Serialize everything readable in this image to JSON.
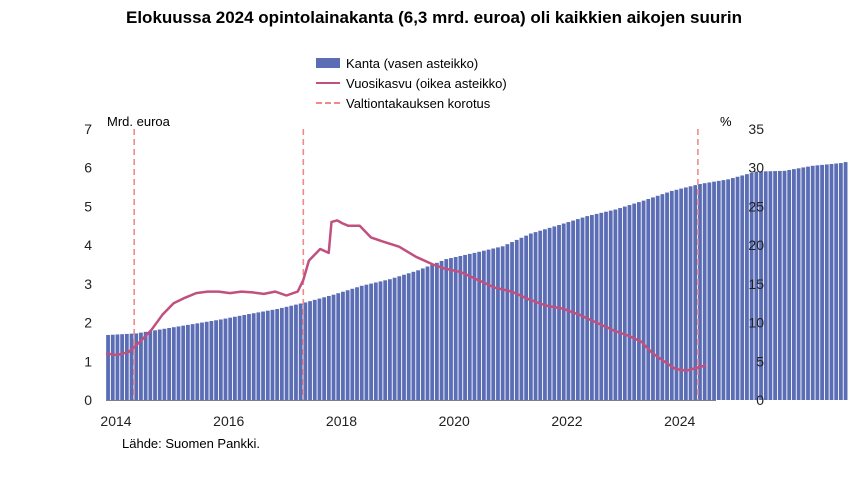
{
  "chart_data": {
    "type": "bar+line",
    "title": "Elokuussa 2024 opintolainakanta (6,3 mrd. euroa) oli kaikkien aikojen suurin",
    "left_axis_label": "Mrd. euroa",
    "right_axis_label": "%",
    "left_ylim": [
      0,
      7
    ],
    "right_ylim": [
      0,
      35
    ],
    "left_ticks": [
      "0",
      "1",
      "2",
      "3",
      "4",
      "5",
      "6",
      "7"
    ],
    "right_ticks": [
      "0",
      "5",
      "10",
      "15",
      "20",
      "25",
      "30",
      "35"
    ],
    "x_ticks": [
      "2014",
      "2016",
      "2018",
      "2020",
      "2022",
      "2024"
    ],
    "x_range": [
      2014.0,
      2024.75
    ],
    "legend": [
      {
        "label": "Kanta (vasen asteikko)",
        "kind": "bar"
      },
      {
        "label": "Vuosikasvu (oikea asteikko)",
        "kind": "line"
      },
      {
        "label": "Valtiontakauksen korotus",
        "kind": "dashed"
      }
    ],
    "vlines": [
      2014.5,
      2017.5,
      2024.5
    ],
    "series_kanta": {
      "name": "Kanta (vasen asteikko)",
      "start": 2014.0,
      "step_months": 1,
      "anchors": [
        [
          0,
          1.68
        ],
        [
          6,
          1.72
        ],
        [
          12,
          1.84
        ],
        [
          18,
          1.96
        ],
        [
          24,
          2.08
        ],
        [
          30,
          2.22
        ],
        [
          36,
          2.35
        ],
        [
          42,
          2.52
        ],
        [
          48,
          2.72
        ],
        [
          54,
          2.95
        ],
        [
          60,
          3.12
        ],
        [
          66,
          3.35
        ],
        [
          72,
          3.64
        ],
        [
          78,
          3.8
        ],
        [
          84,
          3.97
        ],
        [
          90,
          4.3
        ],
        [
          96,
          4.52
        ],
        [
          102,
          4.75
        ],
        [
          108,
          4.92
        ],
        [
          114,
          5.15
        ],
        [
          120,
          5.4
        ],
        [
          126,
          5.58
        ],
        [
          132,
          5.7
        ],
        [
          138,
          5.9
        ],
        [
          144,
          5.92
        ],
        [
          150,
          6.05
        ],
        [
          156,
          6.12
        ],
        [
          163,
          6.3
        ]
      ]
    },
    "series_vuosikasvu": {
      "name": "Vuosikasvu (oikea asteikko)",
      "x": [
        2014.0,
        2014.2,
        2014.4,
        2014.6,
        2014.8,
        2015.0,
        2015.2,
        2015.4,
        2015.6,
        2015.8,
        2016.0,
        2016.2,
        2016.4,
        2016.6,
        2016.8,
        2017.0,
        2017.2,
        2017.4,
        2017.5,
        2017.6,
        2017.8,
        2017.95,
        2018.0,
        2018.1,
        2018.2,
        2018.3,
        2018.5,
        2018.7,
        2018.9,
        2019.2,
        2019.5,
        2019.8,
        2020.0,
        2020.3,
        2020.6,
        2020.9,
        2021.2,
        2021.5,
        2021.8,
        2022.1,
        2022.4,
        2022.7,
        2023.0,
        2023.3,
        2023.5,
        2023.7,
        2023.9,
        2024.1,
        2024.3,
        2024.5,
        2024.65
      ],
      "values": [
        6.0,
        5.8,
        6.2,
        7.5,
        9.0,
        11.0,
        12.5,
        13.2,
        13.8,
        14.0,
        14.0,
        13.8,
        14.0,
        13.9,
        13.7,
        14.0,
        13.5,
        14.0,
        15.5,
        18.0,
        19.5,
        19.0,
        23.0,
        23.2,
        22.8,
        22.5,
        22.5,
        21.0,
        20.5,
        19.8,
        18.5,
        17.5,
        17.0,
        16.5,
        15.5,
        14.5,
        14.0,
        13.0,
        12.2,
        11.8,
        11.0,
        10.0,
        9.0,
        8.2,
        7.5,
        6.0,
        5.0,
        4.0,
        3.8,
        4.2,
        4.5
      ]
    }
  },
  "source_text": "Lähde: Suomen Pankki."
}
